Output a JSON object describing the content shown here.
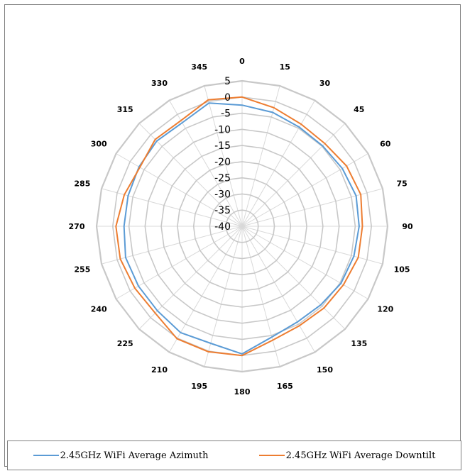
{
  "colors": {
    "azimuth": "#5b9bd5",
    "downtilt": "#ed7d31",
    "grid": "#c8c8c8",
    "spoke": "#d9d9d9"
  },
  "chart_data": {
    "type": "radar",
    "angles": [
      "0",
      "15",
      "30",
      "45",
      "60",
      "75",
      "90",
      "105",
      "120",
      "135",
      "150",
      "165",
      "180",
      "195",
      "210",
      "225",
      "240",
      "255",
      "270",
      "285",
      "300",
      "315",
      "330",
      "345"
    ],
    "radial_ticks": [
      "5",
      "0",
      "-5",
      "-10",
      "-15",
      "-20",
      "-25",
      "-30",
      "-35",
      "-40"
    ],
    "rlim": [
      -40,
      5
    ],
    "series": [
      {
        "name": "2.45GHz WiFi Average Azimuth",
        "values": [
          -2.5,
          -3.5,
          -4.6,
          -4.8,
          -4.2,
          -3.5,
          -3.8,
          -4.2,
          -4.7,
          -5.6,
          -5.8,
          -4.5,
          -0.5,
          -2.5,
          -2.0,
          -3.0,
          -3.0,
          -2.7,
          -3.5,
          -3.5,
          -3.2,
          -2.7,
          -3.0,
          -0.5
        ]
      },
      {
        "name": "2.45GHz WiFi Average Downtilt",
        "values": [
          0.0,
          -2.0,
          -3.5,
          -3.8,
          -2.7,
          -2.0,
          -2.8,
          -2.8,
          -3.8,
          -4.2,
          -4.5,
          -3.5,
          0.0,
          0.2,
          0.2,
          -2.0,
          -1.7,
          -1.0,
          -1.0,
          -2.3,
          -3.5,
          -2.0,
          -2.2,
          0.5
        ]
      }
    ],
    "grid": true,
    "legend_position": "bottom"
  }
}
